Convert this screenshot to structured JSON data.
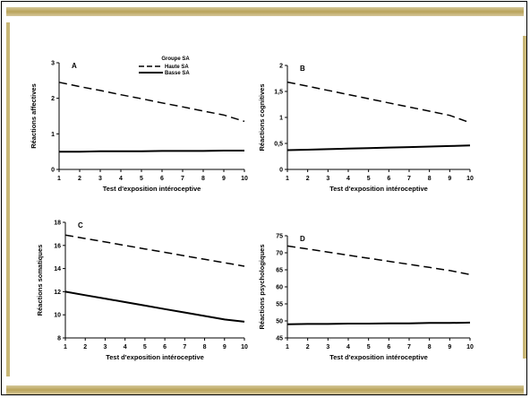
{
  "legend": {
    "title": "Groupe SA",
    "entries": [
      {
        "label": "Haute SA",
        "style": "dashed"
      },
      {
        "label": "Basse SA",
        "style": "solid"
      }
    ]
  },
  "colors": {
    "frame_accent": "#b9a35a",
    "line": "#000000"
  },
  "chart_data": [
    {
      "id": "A",
      "type": "line",
      "title": "A",
      "xlabel": "Test d'exposition intéroceptive",
      "ylabel": "Réactions affectives",
      "x": [
        1,
        2,
        3,
        4,
        5,
        6,
        7,
        8,
        9,
        10
      ],
      "xlim": [
        1,
        10
      ],
      "ylim": [
        0,
        3
      ],
      "yticks": [
        "0",
        "1",
        "2",
        "3"
      ],
      "ytick_values": [
        0,
        1,
        2,
        3
      ],
      "series": [
        {
          "name": "Haute SA",
          "style": "dashed",
          "values": [
            2.45,
            2.33,
            2.22,
            2.1,
            1.99,
            1.87,
            1.76,
            1.64,
            1.53,
            1.35
          ]
        },
        {
          "name": "Basse SA",
          "style": "solid",
          "values": [
            0.5,
            0.5,
            0.51,
            0.51,
            0.51,
            0.52,
            0.52,
            0.52,
            0.53,
            0.53
          ]
        }
      ]
    },
    {
      "id": "B",
      "type": "line",
      "title": "B",
      "xlabel": "Test d'exposition intéroceptive",
      "ylabel": "Réactions cognitives",
      "x": [
        1,
        2,
        3,
        4,
        5,
        6,
        7,
        8,
        9,
        10
      ],
      "xlim": [
        1,
        10
      ],
      "ylim": [
        0,
        2
      ],
      "yticks": [
        "0",
        "0,5",
        "1",
        "1,5",
        "2"
      ],
      "ytick_values": [
        0,
        0.5,
        1,
        1.5,
        2
      ],
      "series": [
        {
          "name": "Haute SA",
          "style": "dashed",
          "values": [
            1.68,
            1.6,
            1.52,
            1.44,
            1.36,
            1.28,
            1.2,
            1.12,
            1.04,
            0.9
          ]
        },
        {
          "name": "Basse SA",
          "style": "solid",
          "values": [
            0.37,
            0.38,
            0.39,
            0.4,
            0.41,
            0.42,
            0.43,
            0.44,
            0.45,
            0.46
          ]
        }
      ]
    },
    {
      "id": "C",
      "type": "line",
      "title": "C",
      "xlabel": "Test d'exposition intéroceptive",
      "ylabel": "Réactions somatiques",
      "x": [
        1,
        2,
        3,
        4,
        5,
        6,
        7,
        8,
        9,
        10
      ],
      "xlim": [
        1,
        10
      ],
      "ylim": [
        8,
        18
      ],
      "yticks": [
        "8",
        "10",
        "12",
        "14",
        "16",
        "18"
      ],
      "ytick_values": [
        8,
        10,
        12,
        14,
        16,
        18
      ],
      "series": [
        {
          "name": "Haute SA",
          "style": "dashed",
          "values": [
            16.9,
            16.6,
            16.3,
            16.0,
            15.7,
            15.4,
            15.1,
            14.8,
            14.5,
            14.2
          ]
        },
        {
          "name": "Basse SA",
          "style": "solid",
          "values": [
            12.0,
            11.7,
            11.4,
            11.1,
            10.8,
            10.5,
            10.2,
            9.9,
            9.6,
            9.4
          ]
        }
      ]
    },
    {
      "id": "D",
      "type": "line",
      "title": "D",
      "xlabel": "Test d'exposition intéroceptive",
      "ylabel": "Réactions psychologiques",
      "x": [
        1,
        2,
        3,
        4,
        5,
        6,
        7,
        8,
        9,
        10
      ],
      "xlim": [
        1,
        10
      ],
      "ylim": [
        45,
        75
      ],
      "yticks": [
        "45",
        "50",
        "55",
        "60",
        "65",
        "70",
        "75"
      ],
      "ytick_values": [
        45,
        50,
        55,
        60,
        65,
        70,
        75
      ],
      "series": [
        {
          "name": "Haute SA",
          "style": "dashed",
          "values": [
            72.0,
            71.1,
            70.2,
            69.3,
            68.4,
            67.5,
            66.6,
            65.7,
            64.8,
            63.6
          ]
        },
        {
          "name": "Basse SA",
          "style": "solid",
          "values": [
            49.0,
            49.1,
            49.1,
            49.2,
            49.2,
            49.3,
            49.3,
            49.4,
            49.4,
            49.5
          ]
        }
      ]
    }
  ]
}
